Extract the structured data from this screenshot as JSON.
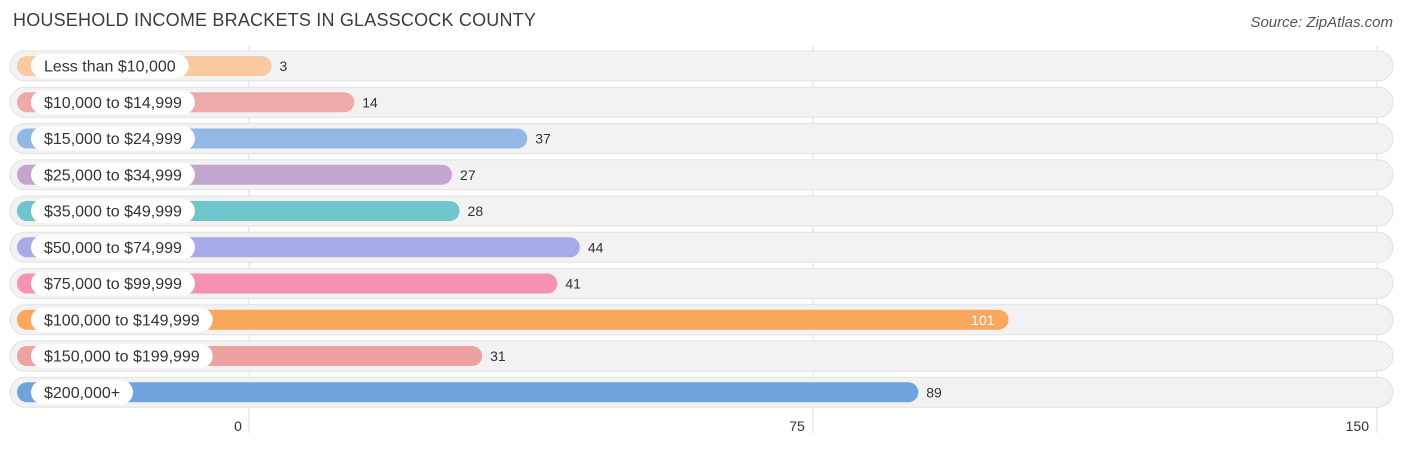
{
  "chart_data": {
    "type": "bar",
    "orientation": "horizontal",
    "title": "HOUSEHOLD INCOME BRACKETS IN GLASSCOCK COUNTY",
    "source": "Source: ZipAtlas.com",
    "categories": [
      "Less than $10,000",
      "$10,000 to $14,999",
      "$15,000 to $24,999",
      "$25,000 to $34,999",
      "$35,000 to $49,999",
      "$50,000 to $74,999",
      "$75,000 to $99,999",
      "$100,000 to $149,999",
      "$150,000 to $199,999",
      "$200,000+"
    ],
    "values": [
      3,
      14,
      37,
      27,
      28,
      44,
      41,
      101,
      31,
      89
    ],
    "colors": [
      "#f9c99f",
      "#eeaaa9",
      "#92b8e6",
      "#c3a6cd",
      "#6fc5cc",
      "#a6aae6",
      "#f592b3",
      "#f9a85e",
      "#eea29f",
      "#6ea3de"
    ],
    "value_labels": [
      "3",
      "14",
      "37",
      "27",
      "28",
      "44",
      "41",
      "101",
      "31",
      "89"
    ],
    "xlim": [
      0,
      150
    ],
    "ticks": [
      0,
      75,
      150
    ],
    "tick_labels": [
      "0",
      "75",
      "150"
    ],
    "grid": true
  }
}
